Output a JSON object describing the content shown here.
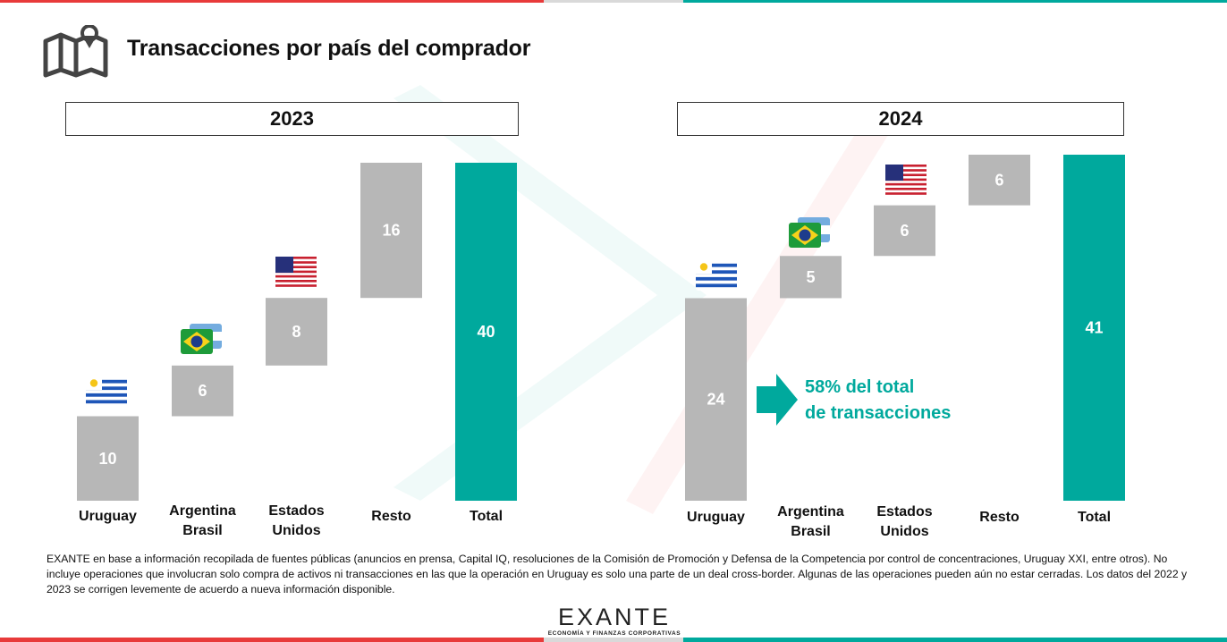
{
  "header": {
    "title": "Transacciones por país del comprador",
    "icon": "map-pin-icon"
  },
  "colors": {
    "accent": "#00a99d",
    "bar": "#b7b7b7",
    "red": "#e83a3a",
    "gray": "#d9d9d9"
  },
  "chart_data": [
    {
      "type": "bar",
      "subtype": "waterfall",
      "title": "2023",
      "categories": [
        "Uruguay",
        "Argentina\nBrasil",
        "Estados\nUnidos",
        "Resto",
        "Total"
      ],
      "values": [
        10,
        6,
        8,
        16,
        40
      ],
      "labels": [
        "10",
        "6",
        "8",
        "16",
        "40"
      ],
      "total_index": 4,
      "ylim": [
        0,
        40
      ]
    },
    {
      "type": "bar",
      "subtype": "waterfall",
      "title": "2024",
      "categories": [
        "Uruguay",
        "Argentina\nBrasil",
        "Estados\nUnidos",
        "Resto",
        "Total"
      ],
      "values": [
        24,
        5,
        6,
        6,
        41
      ],
      "labels": [
        "24",
        "5",
        "6",
        "6",
        "41"
      ],
      "total_index": 4,
      "ylim": [
        0,
        41
      ],
      "annotation": {
        "line1": "58% del total",
        "line2": "de transacciones"
      }
    }
  ],
  "footnote": "EXANTE en base a información recopilada de fuentes públicas (anuncios en prensa, Capital IQ, resoluciones de la Comisión de Promoción y Defensa de la Competencia por control de concentraciones, Uruguay XXI, entre otros). No incluye operaciones que involucran solo compra de activos ni transacciones en las que la operación en Uruguay es solo una parte de un deal cross-border. Algunas de las operaciones pueden aún no estar cerradas. Los datos del 2022 y 2023 se corrigen levemente de acuerdo a nueva información disponible.",
  "logo": {
    "name": "EXANTE",
    "tagline": "ECONOMÍA Y FINANZAS CORPORATIVAS"
  }
}
